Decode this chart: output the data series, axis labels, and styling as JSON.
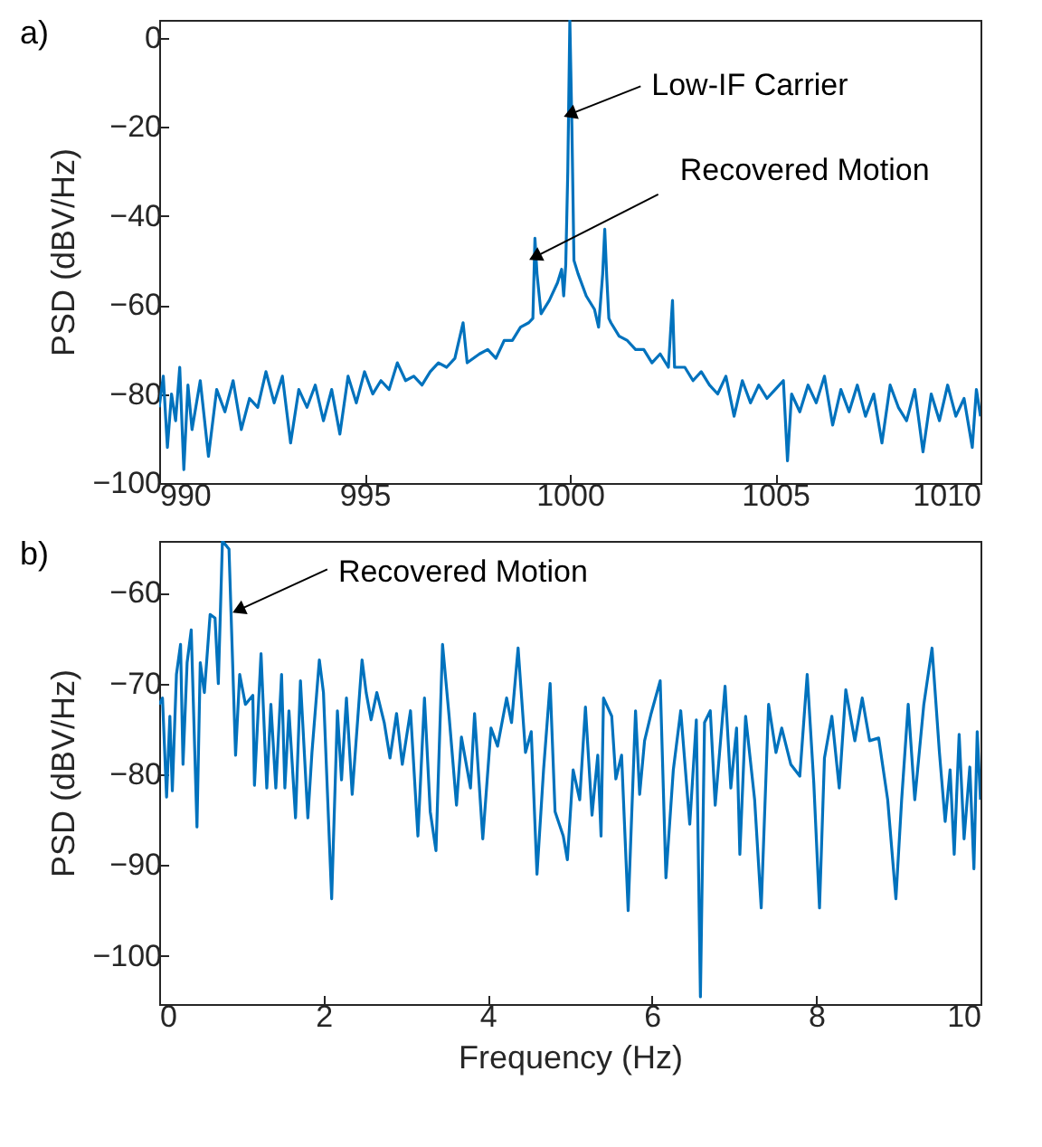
{
  "chart_data": [
    {
      "type": "line",
      "title": "a)",
      "ylabel": "PSD (dBV/Hz)",
      "color": "#0072bd",
      "xlim": [
        990,
        1010
      ],
      "ylim": [
        -100,
        4
      ],
      "xticks": [
        990,
        995,
        1000,
        1005,
        1010
      ],
      "yticks": [
        -100,
        -80,
        -60,
        -40,
        -20,
        0
      ],
      "annotations": [
        {
          "text": "Low-IF Carrier",
          "x": 1000.05,
          "y": -17
        },
        {
          "text": "Recovered Motion",
          "x": 999.2,
          "y": -49
        }
      ],
      "x": [
        990.0,
        990.1,
        990.2,
        990.3,
        990.4,
        990.5,
        990.6,
        990.7,
        990.8,
        991.0,
        991.2,
        991.4,
        991.6,
        991.8,
        992.0,
        992.2,
        992.4,
        992.6,
        992.8,
        993.0,
        993.2,
        993.4,
        993.6,
        993.8,
        994.0,
        994.2,
        994.4,
        994.6,
        994.8,
        995.0,
        995.2,
        995.4,
        995.6,
        995.8,
        996.0,
        996.2,
        996.4,
        996.6,
        996.8,
        997.0,
        997.2,
        997.4,
        997.5,
        997.8,
        998.0,
        998.2,
        998.4,
        998.6,
        998.8,
        999.0,
        999.1,
        999.15,
        999.2,
        999.3,
        999.5,
        999.7,
        999.8,
        999.85,
        999.9,
        999.95,
        1000.0,
        1000.05,
        1000.1,
        1000.2,
        1000.4,
        1000.6,
        1000.7,
        1000.8,
        1000.85,
        1000.9,
        1000.95,
        1001.0,
        1001.2,
        1001.4,
        1001.6,
        1001.8,
        1002.0,
        1002.2,
        1002.4,
        1002.5,
        1002.55,
        1002.8,
        1003.0,
        1003.2,
        1003.4,
        1003.6,
        1003.8,
        1004.0,
        1004.2,
        1004.4,
        1004.6,
        1004.8,
        1005.0,
        1005.2,
        1005.3,
        1005.4,
        1005.6,
        1005.8,
        1006.0,
        1006.2,
        1006.4,
        1006.6,
        1006.8,
        1007.0,
        1007.2,
        1007.4,
        1007.6,
        1007.8,
        1008.0,
        1008.2,
        1008.4,
        1008.6,
        1008.8,
        1009.0,
        1009.2,
        1009.4,
        1009.6,
        1009.8,
        1009.9,
        1010.0
      ],
      "values": [
        -83,
        -76,
        -92,
        -80,
        -86,
        -74,
        -97,
        -78,
        -88,
        -77,
        -94,
        -79,
        -84,
        -77,
        -88,
        -81,
        -83,
        -75,
        -82,
        -76,
        -91,
        -79,
        -83,
        -78,
        -86,
        -79,
        -89,
        -76,
        -82,
        -75,
        -80,
        -77,
        -79,
        -73,
        -77,
        -76,
        -78,
        -75,
        -73,
        -74,
        -72,
        -64,
        -73,
        -71,
        -70,
        -72,
        -68,
        -68,
        -65,
        -64,
        -63,
        -45,
        -53,
        -62,
        -59,
        -55,
        -52,
        -58,
        -51,
        -30,
        4,
        -20,
        -50,
        -53,
        -58,
        -61,
        -65,
        -53,
        -43,
        -54,
        -63,
        -64,
        -67,
        -68,
        -70,
        -70,
        -73,
        -71,
        -74,
        -59,
        -74,
        -74,
        -77,
        -75,
        -78,
        -80,
        -76,
        -85,
        -77,
        -82,
        -78,
        -81,
        -79,
        -77,
        -95,
        -80,
        -84,
        -78,
        -82,
        -76,
        -87,
        -79,
        -84,
        -78,
        -85,
        -80,
        -91,
        -78,
        -83,
        -86,
        -79,
        -93,
        -80,
        -86,
        -78,
        -85,
        -81,
        -92,
        -79,
        -85
      ]
    },
    {
      "type": "line",
      "title": "b)",
      "xlabel": "Frequency (Hz)",
      "ylabel": "PSD (dBV/Hz)",
      "color": "#0072bd",
      "xlim": [
        0,
        10
      ],
      "ylim": [
        -105.3,
        -54.3
      ],
      "xticks": [
        0,
        2,
        4,
        6,
        8,
        10
      ],
      "yticks": [
        -100,
        -90,
        -80,
        -70,
        -60
      ],
      "annotations": [
        {
          "text": "Recovered Motion",
          "x": 0.99,
          "y": -61.8
        }
      ],
      "x": [
        0,
        0.04,
        0.09,
        0.13,
        0.16,
        0.21,
        0.26,
        0.29,
        0.34,
        0.39,
        0.46,
        0.5,
        0.55,
        0.62,
        0.68,
        0.72,
        0.77,
        0.85,
        0.93,
        0.98,
        1.05,
        1.14,
        1.16,
        1.24,
        1.31,
        1.36,
        1.42,
        1.49,
        1.53,
        1.58,
        1.66,
        1.72,
        1.81,
        1.86,
        1.95,
        2,
        2.1,
        2.17,
        2.22,
        2.28,
        2.35,
        2.47,
        2.52,
        2.58,
        2.65,
        2.74,
        2.81,
        2.89,
        2.96,
        3.06,
        3.15,
        3.23,
        3.3,
        3.37,
        3.45,
        3.53,
        3.62,
        3.68,
        3.79,
        3.84,
        3.94,
        4.04,
        4.12,
        4.23,
        4.29,
        4.37,
        4.46,
        4.53,
        4.6,
        4.68,
        4.76,
        4.82,
        4.92,
        4.97,
        5.04,
        5.12,
        5.19,
        5.27,
        5.34,
        5.38,
        5.41,
        5.51,
        5.56,
        5.63,
        5.71,
        5.8,
        5.85,
        5.91,
        5.99,
        6.1,
        6.17,
        6.26,
        6.35,
        6.46,
        6.54,
        6.59,
        6.64,
        6.71,
        6.77,
        6.89,
        6.96,
        7.03,
        7.07,
        7.14,
        7.25,
        7.33,
        7.42,
        7.51,
        7.58,
        7.69,
        7.8,
        7.89,
        7.97,
        8.04,
        8.1,
        8.19,
        8.28,
        8.36,
        8.47,
        8.56,
        8.65,
        8.76,
        8.87,
        8.97,
        9.04,
        9.12,
        9.2,
        9.31,
        9.41,
        9.5,
        9.57,
        9.63,
        9.68,
        9.74,
        9.8,
        9.87,
        9.92,
        9.96,
        10
      ],
      "values": [
        -72.3,
        -71.6,
        -82.5,
        -73.6,
        -81.8,
        -69,
        -65.7,
        -78.9,
        -67.7,
        -64.1,
        -85.8,
        -67.7,
        -71,
        -62.4,
        -62.8,
        -70,
        -54.3,
        -55.2,
        -77.9,
        -69,
        -72.3,
        -71.3,
        -81.2,
        -66.7,
        -81.5,
        -72.3,
        -81.5,
        -69,
        -81.5,
        -73,
        -84.8,
        -69.7,
        -84.8,
        -77.6,
        -67.4,
        -71,
        -93.7,
        -73,
        -80.6,
        -71.6,
        -82.2,
        -67.4,
        -71,
        -74,
        -71,
        -74.3,
        -78.2,
        -73.3,
        -78.9,
        -73,
        -86.8,
        -71.6,
        -84.1,
        -88.4,
        -65.7,
        -73.6,
        -83.4,
        -75.9,
        -81.5,
        -73.3,
        -87.1,
        -74.9,
        -76.9,
        -71.6,
        -74.3,
        -66.1,
        -77.6,
        -75.3,
        -91,
        -79.5,
        -70,
        -84.1,
        -86.8,
        -89.4,
        -79.5,
        -82.8,
        -72.6,
        -84.5,
        -77.9,
        -86.8,
        -71.6,
        -73.6,
        -80.5,
        -77.9,
        -95,
        -73,
        -82.2,
        -76.3,
        -73.3,
        -69.7,
        -91.4,
        -79.5,
        -73,
        -85.5,
        -74,
        -104.5,
        -74.3,
        -73,
        -83.4,
        -70.3,
        -81.5,
        -74.9,
        -88.8,
        -73.6,
        -82.8,
        -94.7,
        -72.3,
        -77.6,
        -74.9,
        -78.9,
        -80.2,
        -69,
        -80.9,
        -94.7,
        -78.2,
        -73.6,
        -81.5,
        -70.7,
        -76.3,
        -71.6,
        -76.3,
        -76,
        -82.8,
        -93.7,
        -82.8,
        -72.3,
        -82.8,
        -72.3,
        -66.1,
        -77.6,
        -85.2,
        -79.5,
        -88.8,
        -75.6,
        -87.1,
        -79.2,
        -90.4,
        -75.3,
        -82.8
      ]
    }
  ]
}
